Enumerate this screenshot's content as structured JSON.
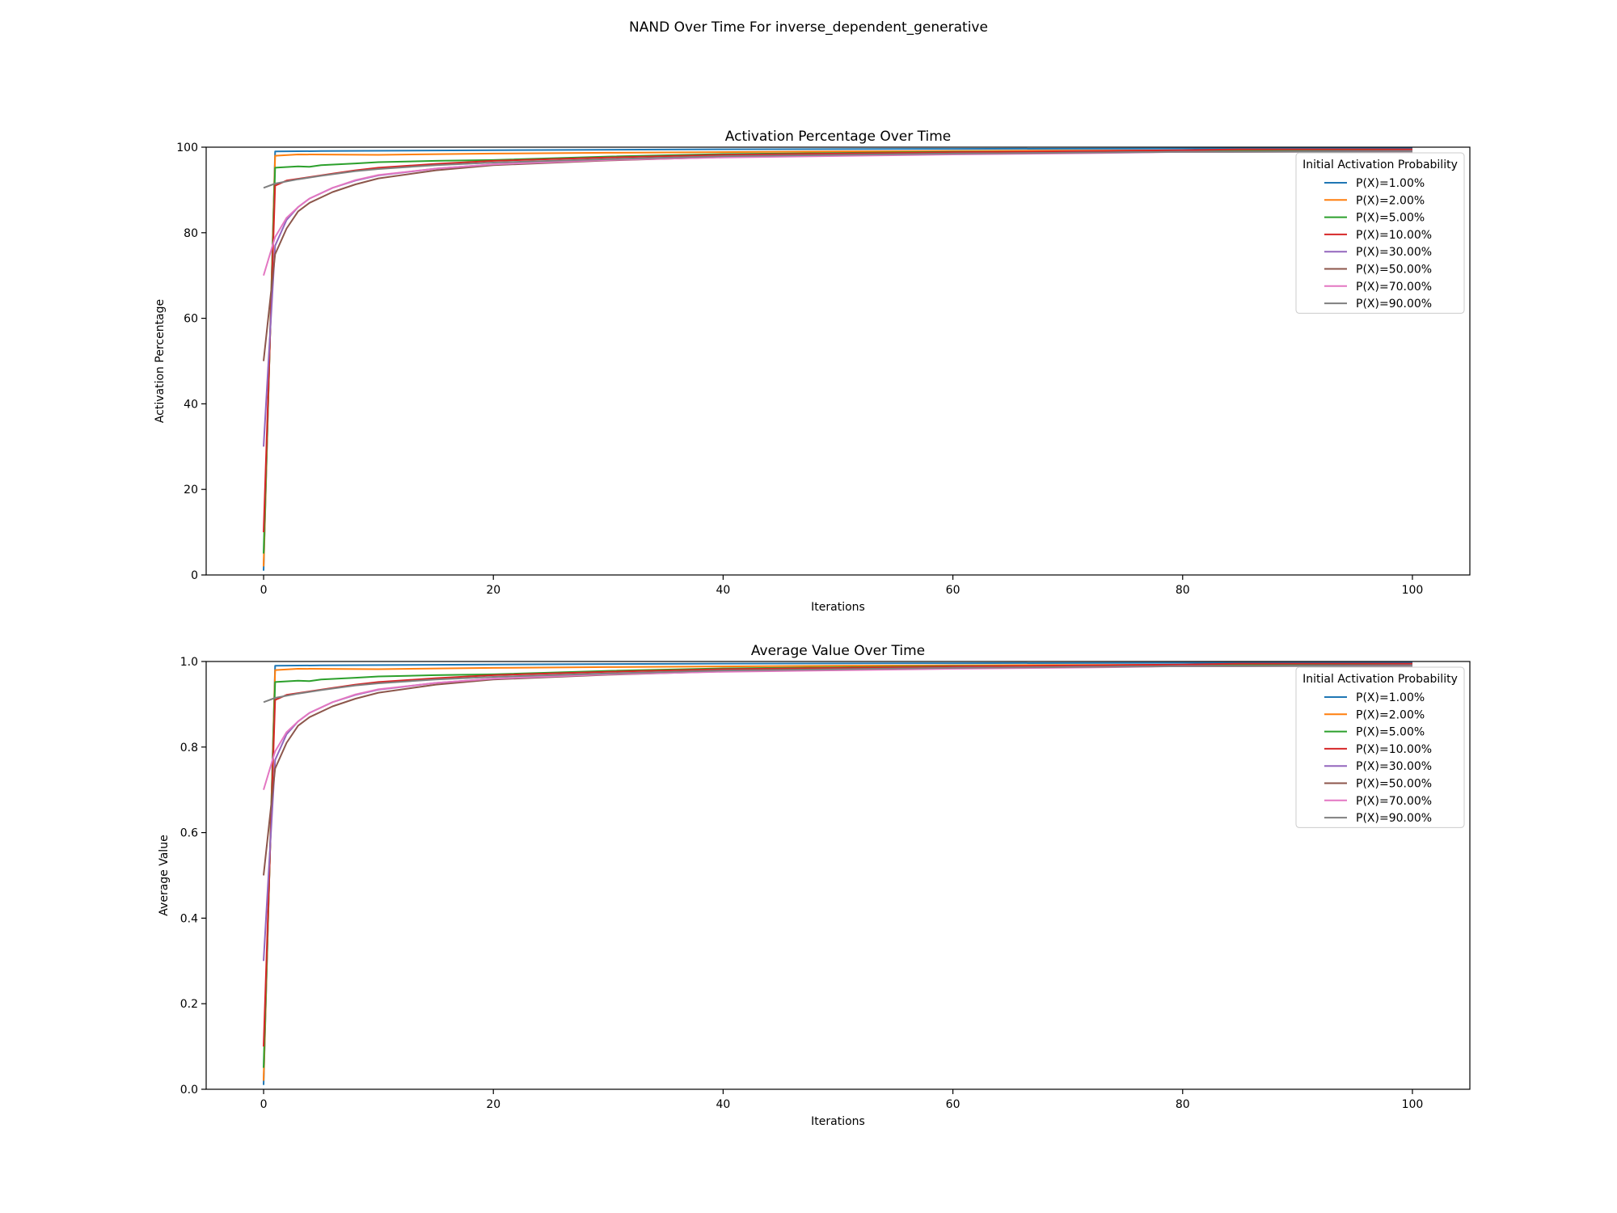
{
  "figure": {
    "title": "NAND Over Time For inverse_dependent_generative"
  },
  "chart_data": [
    {
      "type": "line",
      "title": "Activation Percentage Over Time",
      "xlabel": "Iterations",
      "ylabel": "Activation Percentage",
      "xlim": [
        -5,
        105
      ],
      "ylim": [
        0,
        100
      ],
      "xticks": [
        0,
        20,
        40,
        60,
        80,
        100
      ],
      "yticks": [
        0,
        20,
        40,
        60,
        80,
        100
      ],
      "grid": false,
      "legend": {
        "title": "Initial Activation Probability",
        "placement": "top-right"
      },
      "series": [
        {
          "name": "P(X)=1.00%",
          "color": "#1f77b4",
          "points": [
            [
              0,
              1
            ],
            [
              1,
              99
            ],
            [
              5,
              99.1
            ],
            [
              20,
              99.3
            ],
            [
              40,
              99.5
            ],
            [
              60,
              99.6
            ],
            [
              80,
              99.7
            ],
            [
              100,
              99.8
            ]
          ]
        },
        {
          "name": "P(X)=2.00%",
          "color": "#ff7f0e",
          "points": [
            [
              0,
              2
            ],
            [
              1,
              98
            ],
            [
              3,
              98.3
            ],
            [
              10,
              98.2
            ],
            [
              20,
              98.5
            ],
            [
              30,
              98.7
            ],
            [
              50,
              99.0
            ],
            [
              70,
              99.2
            ],
            [
              100,
              99.3
            ]
          ]
        },
        {
          "name": "P(X)=5.00%",
          "color": "#2ca02c",
          "points": [
            [
              0,
              5
            ],
            [
              1,
              95.2
            ],
            [
              3,
              95.5
            ],
            [
              4,
              95.4
            ],
            [
              5,
              95.8
            ],
            [
              8,
              96.2
            ],
            [
              10,
              96.5
            ],
            [
              15,
              96.8
            ],
            [
              20,
              97.0
            ],
            [
              30,
              97.8
            ],
            [
              40,
              98.4
            ],
            [
              60,
              98.9
            ],
            [
              80,
              99.1
            ],
            [
              100,
              99.2
            ]
          ]
        },
        {
          "name": "P(X)=10.00%",
          "color": "#d62728",
          "points": [
            [
              0,
              10
            ],
            [
              1,
              91
            ],
            [
              2,
              92.2
            ],
            [
              4,
              93.0
            ],
            [
              6,
              93.8
            ],
            [
              8,
              94.6
            ],
            [
              10,
              95.2
            ],
            [
              15,
              96.1
            ],
            [
              20,
              96.8
            ],
            [
              30,
              97.6
            ],
            [
              40,
              98.2
            ],
            [
              60,
              98.8
            ],
            [
              80,
              99.3
            ],
            [
              85,
              99.5
            ],
            [
              100,
              99.5
            ]
          ]
        },
        {
          "name": "P(X)=30.00%",
          "color": "#9467bd",
          "points": [
            [
              0,
              30
            ],
            [
              1,
              77
            ],
            [
              2,
              83
            ],
            [
              3,
              86
            ],
            [
              4,
              88
            ],
            [
              6,
              90.5
            ],
            [
              8,
              92.2
            ],
            [
              10,
              93.4
            ],
            [
              15,
              95.0
            ],
            [
              20,
              96.0
            ],
            [
              30,
              97.0
            ],
            [
              40,
              97.7
            ],
            [
              60,
              98.5
            ],
            [
              80,
              98.9
            ],
            [
              100,
              99.1
            ]
          ]
        },
        {
          "name": "P(X)=50.00%",
          "color": "#8c564b",
          "points": [
            [
              0,
              50
            ],
            [
              1,
              75
            ],
            [
              2,
              81
            ],
            [
              3,
              85
            ],
            [
              4,
              87
            ],
            [
              6,
              89.5
            ],
            [
              8,
              91.3
            ],
            [
              10,
              92.7
            ],
            [
              15,
              94.6
            ],
            [
              20,
              95.8
            ],
            [
              30,
              96.9
            ],
            [
              40,
              97.7
            ],
            [
              60,
              98.4
            ],
            [
              80,
              98.9
            ],
            [
              100,
              99.0
            ]
          ]
        },
        {
          "name": "P(X)=70.00%",
          "color": "#e377c2",
          "points": [
            [
              0,
              70
            ],
            [
              1,
              79
            ],
            [
              2,
              83.5
            ],
            [
              3,
              86
            ],
            [
              4,
              88
            ],
            [
              6,
              90.5
            ],
            [
              8,
              92.3
            ],
            [
              10,
              93.5
            ],
            [
              15,
              95.0
            ],
            [
              20,
              96.0
            ],
            [
              30,
              97.0
            ],
            [
              40,
              97.6
            ],
            [
              60,
              98.3
            ],
            [
              72,
              98.6
            ],
            [
              80,
              98.9
            ],
            [
              100,
              99.0
            ]
          ]
        },
        {
          "name": "P(X)=90.00%",
          "color": "#7f7f7f",
          "points": [
            [
              0,
              90.5
            ],
            [
              1,
              91.5
            ],
            [
              3,
              92.5
            ],
            [
              5,
              93.3
            ],
            [
              8,
              94.4
            ],
            [
              10,
              94.9
            ],
            [
              15,
              95.8
            ],
            [
              20,
              96.4
            ],
            [
              30,
              97.2
            ],
            [
              40,
              97.9
            ],
            [
              60,
              98.5
            ],
            [
              80,
              98.9
            ],
            [
              100,
              99.0
            ]
          ]
        }
      ]
    },
    {
      "type": "line",
      "title": "Average Value Over Time",
      "xlabel": "Iterations",
      "ylabel": "Average Value",
      "xlim": [
        -5,
        105
      ],
      "ylim": [
        0,
        1
      ],
      "xticks": [
        0,
        20,
        40,
        60,
        80,
        100
      ],
      "yticks": [
        0.0,
        0.2,
        0.4,
        0.6,
        0.8,
        1.0
      ],
      "grid": false,
      "legend": {
        "title": "Initial Activation Probability",
        "placement": "top-right"
      },
      "series": [
        {
          "name": "P(X)=1.00%",
          "color": "#1f77b4",
          "points": [
            [
              0,
              0.01
            ],
            [
              1,
              0.99
            ],
            [
              5,
              0.991
            ],
            [
              20,
              0.993
            ],
            [
              40,
              0.995
            ],
            [
              60,
              0.996
            ],
            [
              80,
              0.997
            ],
            [
              100,
              0.998
            ]
          ]
        },
        {
          "name": "P(X)=2.00%",
          "color": "#ff7f0e",
          "points": [
            [
              0,
              0.02
            ],
            [
              1,
              0.98
            ],
            [
              3,
              0.983
            ],
            [
              10,
              0.982
            ],
            [
              20,
              0.985
            ],
            [
              30,
              0.987
            ],
            [
              50,
              0.99
            ],
            [
              70,
              0.992
            ],
            [
              100,
              0.993
            ]
          ]
        },
        {
          "name": "P(X)=5.00%",
          "color": "#2ca02c",
          "points": [
            [
              0,
              0.05
            ],
            [
              1,
              0.952
            ],
            [
              3,
              0.955
            ],
            [
              4,
              0.954
            ],
            [
              5,
              0.958
            ],
            [
              8,
              0.962
            ],
            [
              10,
              0.965
            ],
            [
              15,
              0.968
            ],
            [
              20,
              0.97
            ],
            [
              30,
              0.978
            ],
            [
              40,
              0.984
            ],
            [
              60,
              0.989
            ],
            [
              80,
              0.991
            ],
            [
              100,
              0.992
            ]
          ]
        },
        {
          "name": "P(X)=10.00%",
          "color": "#d62728",
          "points": [
            [
              0,
              0.1
            ],
            [
              1,
              0.91
            ],
            [
              2,
              0.922
            ],
            [
              4,
              0.93
            ],
            [
              6,
              0.938
            ],
            [
              8,
              0.946
            ],
            [
              10,
              0.952
            ],
            [
              15,
              0.961
            ],
            [
              20,
              0.968
            ],
            [
              30,
              0.976
            ],
            [
              40,
              0.982
            ],
            [
              60,
              0.988
            ],
            [
              80,
              0.993
            ],
            [
              85,
              0.995
            ],
            [
              100,
              0.995
            ]
          ]
        },
        {
          "name": "P(X)=30.00%",
          "color": "#9467bd",
          "points": [
            [
              0,
              0.3
            ],
            [
              1,
              0.77
            ],
            [
              2,
              0.83
            ],
            [
              3,
              0.86
            ],
            [
              4,
              0.88
            ],
            [
              6,
              0.905
            ],
            [
              8,
              0.922
            ],
            [
              10,
              0.934
            ],
            [
              15,
              0.95
            ],
            [
              20,
              0.96
            ],
            [
              30,
              0.97
            ],
            [
              40,
              0.977
            ],
            [
              60,
              0.985
            ],
            [
              80,
              0.989
            ],
            [
              100,
              0.991
            ]
          ]
        },
        {
          "name": "P(X)=50.00%",
          "color": "#8c564b",
          "points": [
            [
              0,
              0.5
            ],
            [
              1,
              0.75
            ],
            [
              2,
              0.81
            ],
            [
              3,
              0.85
            ],
            [
              4,
              0.87
            ],
            [
              6,
              0.895
            ],
            [
              8,
              0.913
            ],
            [
              10,
              0.927
            ],
            [
              15,
              0.946
            ],
            [
              20,
              0.958
            ],
            [
              30,
              0.969
            ],
            [
              40,
              0.977
            ],
            [
              60,
              0.984
            ],
            [
              80,
              0.989
            ],
            [
              100,
              0.99
            ]
          ]
        },
        {
          "name": "P(X)=70.00%",
          "color": "#e377c2",
          "points": [
            [
              0,
              0.7
            ],
            [
              1,
              0.79
            ],
            [
              2,
              0.835
            ],
            [
              3,
              0.86
            ],
            [
              4,
              0.88
            ],
            [
              6,
              0.905
            ],
            [
              8,
              0.923
            ],
            [
              10,
              0.935
            ],
            [
              15,
              0.95
            ],
            [
              20,
              0.96
            ],
            [
              30,
              0.97
            ],
            [
              40,
              0.976
            ],
            [
              60,
              0.983
            ],
            [
              72,
              0.986
            ],
            [
              80,
              0.989
            ],
            [
              100,
              0.99
            ]
          ]
        },
        {
          "name": "P(X)=90.00%",
          "color": "#7f7f7f",
          "points": [
            [
              0,
              0.905
            ],
            [
              1,
              0.915
            ],
            [
              3,
              0.925
            ],
            [
              5,
              0.933
            ],
            [
              8,
              0.944
            ],
            [
              10,
              0.949
            ],
            [
              15,
              0.958
            ],
            [
              20,
              0.964
            ],
            [
              30,
              0.972
            ],
            [
              40,
              0.979
            ],
            [
              60,
              0.985
            ],
            [
              80,
              0.989
            ],
            [
              100,
              0.99
            ]
          ]
        }
      ]
    }
  ]
}
